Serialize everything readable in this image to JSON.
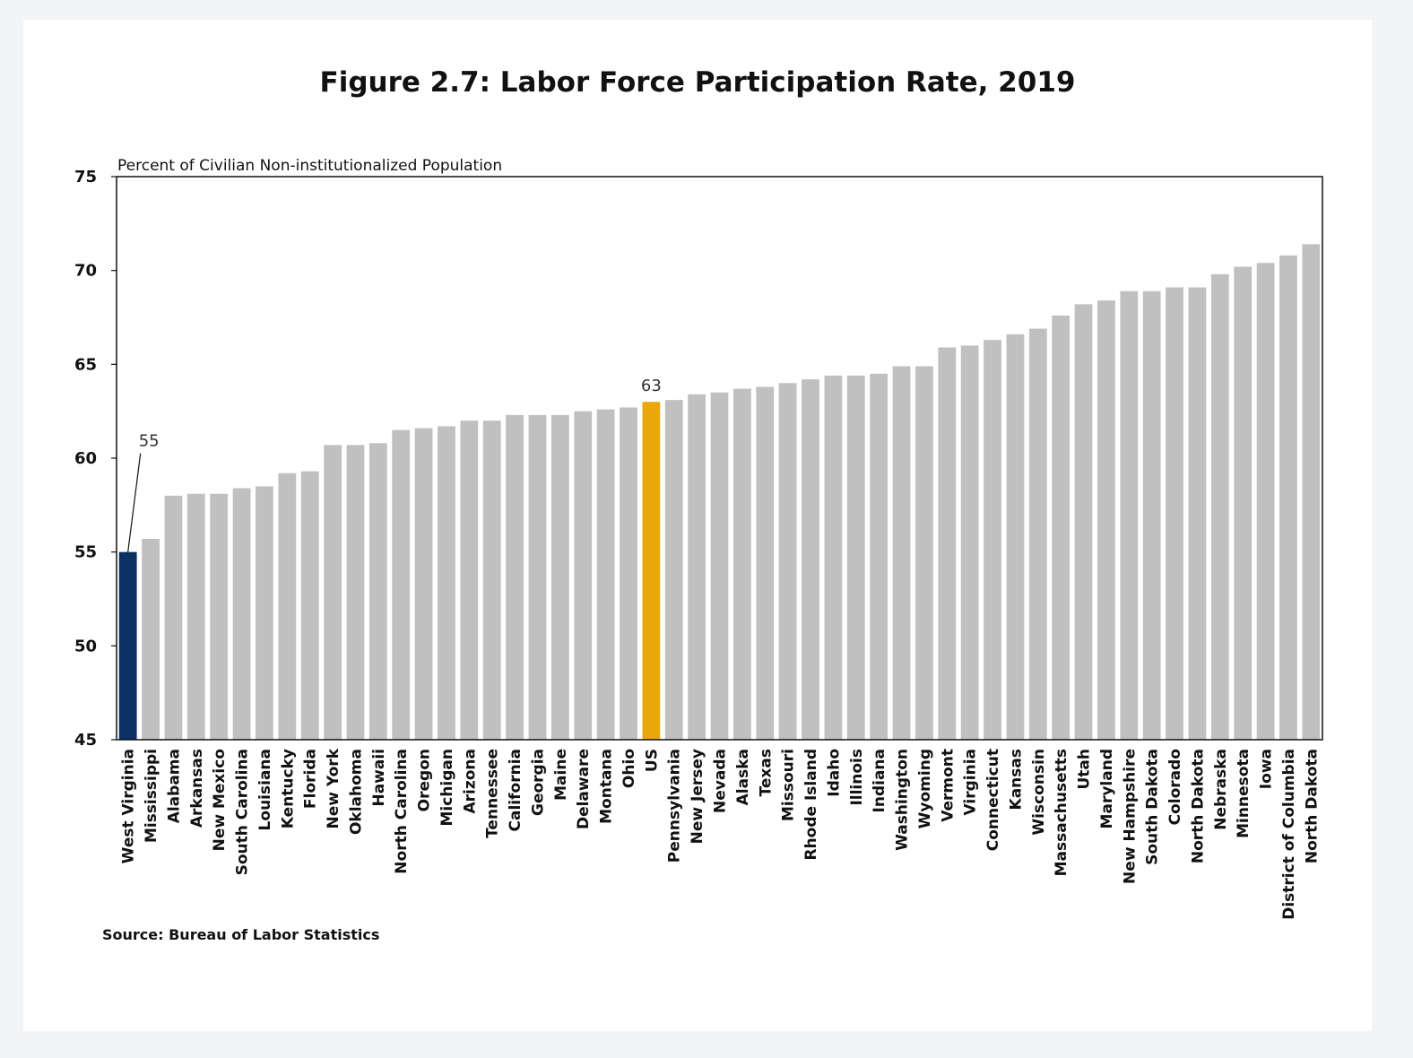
{
  "chart_data": {
    "type": "bar",
    "title": "Figure 2.7: Labor Force Participation Rate, 2019",
    "ylabel": "Percent of Civilian Non-institutionalized Population",
    "xlabel": "",
    "ylim": [
      45,
      75
    ],
    "yticks": [
      45,
      50,
      55,
      60,
      65,
      70,
      75
    ],
    "source": "Source: Bureau of Labor Statistics",
    "colors": {
      "default": "#c0c0c0",
      "lowest": "#0b3162",
      "us": "#e8a80b"
    },
    "highlight": {
      "lowest": "West Virginia",
      "us": "US"
    },
    "data_labels": [
      {
        "category": "West Virginia",
        "text": "55"
      },
      {
        "category": "US",
        "text": "63"
      }
    ],
    "categories": [
      "West Virginia",
      "Mississippi",
      "Alabama",
      "Arkansas",
      "New Mexico",
      "South Carolina",
      "Louisiana",
      "Kentucky",
      "Florida",
      "New York",
      "Oklahoma",
      "Hawaii",
      "North Carolina",
      "Oregon",
      "Michigan",
      "Arizona",
      "Tennessee",
      "California",
      "Georgia",
      "Maine",
      "Delaware",
      "Montana",
      "Ohio",
      "US",
      "Pennsylvania",
      "New Jersey",
      "Nevada",
      "Alaska",
      "Texas",
      "Missouri",
      "Rhode Island",
      "Idaho",
      "Illinois",
      "Indiana",
      "Washington",
      "Wyoming",
      "Vermont",
      "Virginia",
      "Connecticut",
      "Kansas",
      "Wisconsin",
      "Massachusetts",
      "Utah",
      "Maryland",
      "New Hampshire",
      "South Dakota",
      "Colorado",
      "North Dakota",
      "Nebraska",
      "Minnesota",
      "Iowa",
      "District of Columbia",
      "North Dakota"
    ],
    "values": [
      55.0,
      55.7,
      58.0,
      58.1,
      58.1,
      58.4,
      58.5,
      59.2,
      59.3,
      60.7,
      60.7,
      60.8,
      61.5,
      61.6,
      61.7,
      62.0,
      62.0,
      62.3,
      62.3,
      62.3,
      62.5,
      62.6,
      62.7,
      63.0,
      63.1,
      63.4,
      63.5,
      63.7,
      63.8,
      64.0,
      64.2,
      64.4,
      64.4,
      64.5,
      64.9,
      64.9,
      65.9,
      66.0,
      66.3,
      66.6,
      66.9,
      67.6,
      68.2,
      68.4,
      68.9,
      68.9,
      69.1,
      69.1,
      69.8,
      70.2,
      70.4,
      70.8,
      71.4
    ]
  }
}
